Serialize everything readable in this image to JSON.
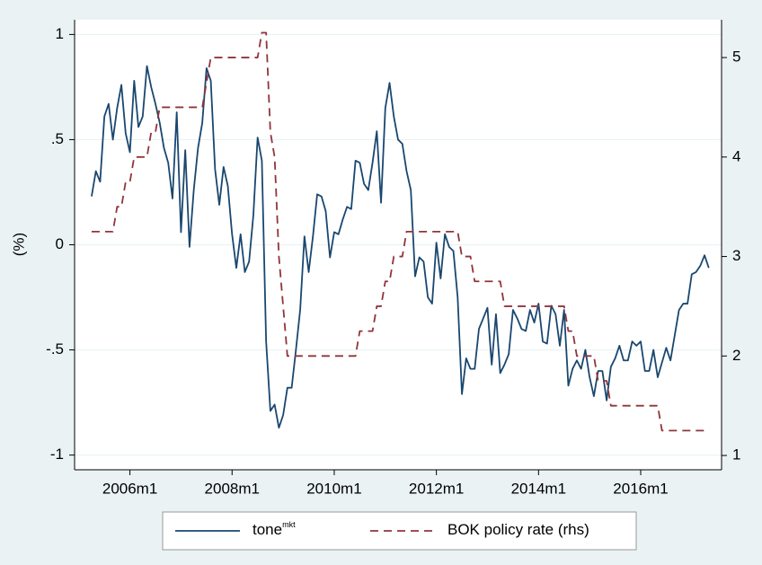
{
  "chart_data": {
    "type": "line",
    "ylabel": "(%)",
    "x": [
      "2005m4",
      "2005m5",
      "2005m6",
      "2005m7",
      "2005m8",
      "2005m9",
      "2005m10",
      "2005m11",
      "2005m12",
      "2006m1",
      "2006m2",
      "2006m3",
      "2006m4",
      "2006m5",
      "2006m6",
      "2006m7",
      "2006m8",
      "2006m9",
      "2006m10",
      "2006m11",
      "2006m12",
      "2007m1",
      "2007m2",
      "2007m3",
      "2007m4",
      "2007m5",
      "2007m6",
      "2007m7",
      "2007m8",
      "2007m9",
      "2007m10",
      "2007m11",
      "2007m12",
      "2008m1",
      "2008m2",
      "2008m3",
      "2008m4",
      "2008m5",
      "2008m6",
      "2008m7",
      "2008m8",
      "2008m9",
      "2008m10",
      "2008m11",
      "2008m12",
      "2009m1",
      "2009m2",
      "2009m3",
      "2009m4",
      "2009m5",
      "2009m6",
      "2009m7",
      "2009m8",
      "2009m9",
      "2009m10",
      "2009m11",
      "2009m12",
      "2010m1",
      "2010m2",
      "2010m3",
      "2010m4",
      "2010m5",
      "2010m6",
      "2010m7",
      "2010m8",
      "2010m9",
      "2010m10",
      "2010m11",
      "2010m12",
      "2011m1",
      "2011m2",
      "2011m3",
      "2011m4",
      "2011m5",
      "2011m6",
      "2011m7",
      "2011m8",
      "2011m9",
      "2011m10",
      "2011m11",
      "2011m12",
      "2012m1",
      "2012m2",
      "2012m3",
      "2012m4",
      "2012m5",
      "2012m6",
      "2012m7",
      "2012m8",
      "2012m9",
      "2012m10",
      "2012m11",
      "2012m12",
      "2013m1",
      "2013m2",
      "2013m3",
      "2013m4",
      "2013m5",
      "2013m6",
      "2013m7",
      "2013m8",
      "2013m9",
      "2013m10",
      "2013m11",
      "2013m12",
      "2014m1",
      "2014m2",
      "2014m3",
      "2014m4",
      "2014m5",
      "2014m6",
      "2014m7",
      "2014m8",
      "2014m9",
      "2014m10",
      "2014m11",
      "2014m12",
      "2015m1",
      "2015m2",
      "2015m3",
      "2015m4",
      "2015m5",
      "2015m6",
      "2015m7",
      "2015m8",
      "2015m9",
      "2015m10",
      "2015m11",
      "2015m12",
      "2016m1",
      "2016m2",
      "2016m3",
      "2016m4",
      "2016m5",
      "2016m6",
      "2016m7",
      "2016m8",
      "2016m9",
      "2016m10",
      "2016m11",
      "2016m12",
      "2017m1",
      "2017m2",
      "2017m3",
      "2017m4",
      "2017m5"
    ],
    "series": [
      {
        "name": "tone",
        "superscript": "mkt",
        "color": "#1a476f",
        "axis": "y",
        "values": [
          0.23,
          0.35,
          0.3,
          0.61,
          0.67,
          0.5,
          0.65,
          0.76,
          0.53,
          0.44,
          0.78,
          0.56,
          0.61,
          0.85,
          0.75,
          0.67,
          0.58,
          0.46,
          0.39,
          0.22,
          0.63,
          0.06,
          0.45,
          -0.01,
          0.26,
          0.46,
          0.58,
          0.84,
          0.78,
          0.36,
          0.19,
          0.37,
          0.28,
          0.05,
          -0.11,
          0.05,
          -0.13,
          -0.08,
          0.14,
          0.51,
          0.4,
          -0.46,
          -0.79,
          -0.76,
          -0.87,
          -0.81,
          -0.68,
          -0.68,
          -0.5,
          -0.31,
          0.04,
          -0.13,
          0.04,
          0.24,
          0.23,
          0.16,
          -0.06,
          0.06,
          0.05,
          0.12,
          0.18,
          0.17,
          0.4,
          0.39,
          0.29,
          0.26,
          0.39,
          0.54,
          0.2,
          0.65,
          0.77,
          0.61,
          0.5,
          0.48,
          0.35,
          0.26,
          -0.15,
          -0.06,
          -0.08,
          -0.25,
          -0.28,
          0.01,
          -0.16,
          0.05,
          -0.01,
          -0.03,
          -0.25,
          -0.71,
          -0.54,
          -0.59,
          -0.59,
          -0.4,
          -0.35,
          -0.3,
          -0.57,
          -0.33,
          -0.61,
          -0.57,
          -0.52,
          -0.31,
          -0.35,
          -0.4,
          -0.41,
          -0.31,
          -0.37,
          -0.28,
          -0.46,
          -0.47,
          -0.29,
          -0.33,
          -0.48,
          -0.31,
          -0.67,
          -0.59,
          -0.55,
          -0.59,
          -0.5,
          -0.63,
          -0.72,
          -0.6,
          -0.6,
          -0.74,
          -0.58,
          -0.54,
          -0.48,
          -0.55,
          -0.55,
          -0.46,
          -0.48,
          -0.46,
          -0.6,
          -0.6,
          -0.5,
          -0.63,
          -0.56,
          -0.49,
          -0.55,
          -0.43,
          -0.31,
          -0.28,
          -0.28,
          -0.14,
          -0.13,
          -0.1,
          -0.05,
          -0.11
        ]
      },
      {
        "name": "BOK policy rate (rhs)",
        "color": "#90353b",
        "dashed": true,
        "axis": "y2",
        "values": [
          3.25,
          3.25,
          3.25,
          3.25,
          3.25,
          3.25,
          3.5,
          3.5,
          3.75,
          3.75,
          4.0,
          4.0,
          4.0,
          4.0,
          4.25,
          4.25,
          4.5,
          4.5,
          4.5,
          4.5,
          4.5,
          4.5,
          4.5,
          4.5,
          4.5,
          4.5,
          4.5,
          4.75,
          5.0,
          5.0,
          5.0,
          5.0,
          5.0,
          5.0,
          5.0,
          5.0,
          5.0,
          5.0,
          5.0,
          5.0,
          5.25,
          5.25,
          4.25,
          4.0,
          3.0,
          2.5,
          2.0,
          2.0,
          2.0,
          2.0,
          2.0,
          2.0,
          2.0,
          2.0,
          2.0,
          2.0,
          2.0,
          2.0,
          2.0,
          2.0,
          2.0,
          2.0,
          2.0,
          2.25,
          2.25,
          2.25,
          2.25,
          2.5,
          2.5,
          2.75,
          2.75,
          3.0,
          3.0,
          3.0,
          3.25,
          3.25,
          3.25,
          3.25,
          3.25,
          3.25,
          3.25,
          3.25,
          3.25,
          3.25,
          3.25,
          3.25,
          3.25,
          3.0,
          3.0,
          3.0,
          2.75,
          2.75,
          2.75,
          2.75,
          2.75,
          2.75,
          2.75,
          2.5,
          2.5,
          2.5,
          2.5,
          2.5,
          2.5,
          2.5,
          2.5,
          2.5,
          2.5,
          2.5,
          2.5,
          2.5,
          2.5,
          2.5,
          2.25,
          2.25,
          2.0,
          2.0,
          2.0,
          2.0,
          2.0,
          1.75,
          1.75,
          1.75,
          1.5,
          1.5,
          1.5,
          1.5,
          1.5,
          1.5,
          1.5,
          1.5,
          1.5,
          1.5,
          1.5,
          1.5,
          1.25,
          1.25,
          1.25,
          1.25,
          1.25,
          1.25,
          1.25,
          1.25,
          1.25,
          1.25,
          1.25,
          1.25
        ]
      }
    ],
    "xlim": [
      "2004m12",
      "2017m8"
    ],
    "xticks": [
      "2006m1",
      "2008m1",
      "2010m1",
      "2012m1",
      "2014m1",
      "2016m1"
    ],
    "ylim": [
      -1.07,
      1.07
    ],
    "yticks": [
      {
        "value": -1,
        "label": "-1"
      },
      {
        "value": -0.5,
        "label": "-.5"
      },
      0,
      {
        "value": 0.5,
        "label": ".5"
      },
      1
    ],
    "y2lim": [
      0.856,
      5.38
    ],
    "y2ticks": [
      1,
      2,
      3,
      4,
      5
    ],
    "grid": true,
    "legend": "bottom"
  }
}
